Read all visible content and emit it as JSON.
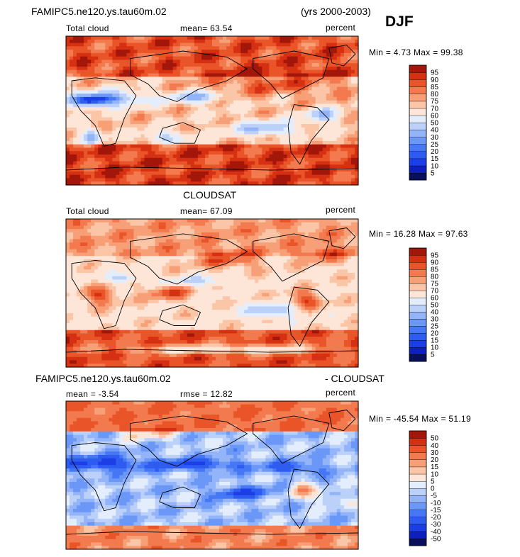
{
  "header": {
    "model": "FAMIPC5.ne120.ys.tau60m.02",
    "years": "(yrs 2000-2003)",
    "season": "DJF"
  },
  "panels": [
    {
      "title": "",
      "left_label": "Total cloud",
      "stat1": "mean=  63.54",
      "stat2": "",
      "units": "percent",
      "minmax": "Min =   4.73 Max =  99.38",
      "levels": [
        "5",
        "10",
        "15",
        "20",
        "25",
        "30",
        "40",
        "50",
        "60",
        "70",
        "75",
        "80",
        "85",
        "90",
        "95"
      ],
      "colors": [
        "#08105e",
        "#0d1fbf",
        "#1b3ee6",
        "#2e5cf0",
        "#4677f5",
        "#6b97f7",
        "#93b4f8",
        "#bcd1fa",
        "#e4edfb",
        "#fde6d8",
        "#fbc5a7",
        "#f7a078",
        "#f27a4e",
        "#e95429",
        "#d63012",
        "#a3160a"
      ],
      "pattern": "model"
    },
    {
      "title": "CLOUDSAT",
      "left_label": "Total cloud",
      "stat1": "mean=  67.09",
      "stat2": "",
      "units": "percent",
      "minmax": "Min =  16.28 Max =  97.63",
      "levels": [
        "5",
        "10",
        "15",
        "20",
        "25",
        "30",
        "40",
        "50",
        "60",
        "70",
        "75",
        "80",
        "85",
        "90",
        "95"
      ],
      "colors": [
        "#08105e",
        "#0d1fbf",
        "#1b3ee6",
        "#2e5cf0",
        "#4677f5",
        "#6b97f7",
        "#93b4f8",
        "#bcd1fa",
        "#e4edfb",
        "#fde6d8",
        "#fbc5a7",
        "#f7a078",
        "#f27a4e",
        "#e95429",
        "#d63012",
        "#a3160a"
      ],
      "pattern": "obs"
    },
    {
      "title": "FAMIPC5.ne120.ys.tau60m.02",
      "title_right": "- CLOUDSAT",
      "left_label": "mean =  -3.54",
      "stat1": "rmse =  12.82",
      "stat2": "",
      "units": "percent",
      "minmax": "Min = -45.54 Max =  51.19",
      "levels": [
        "-50",
        "-40",
        "-30",
        "-20",
        "-15",
        "-10",
        "-5",
        "0",
        "5",
        "10",
        "15",
        "20",
        "30",
        "40",
        "50"
      ],
      "colors": [
        "#08105e",
        "#0d1fbf",
        "#1b3ee6",
        "#2e5cf0",
        "#4677f5",
        "#6b97f7",
        "#93b4f8",
        "#bcd1fa",
        "#e4edfb",
        "#fde6d8",
        "#fbc5a7",
        "#f7a078",
        "#f27a4e",
        "#e95429",
        "#d63012",
        "#a3160a"
      ],
      "pattern": "diff"
    }
  ],
  "chart_data": {
    "type": "heatmap",
    "title": "DJF",
    "variable": "Total cloud",
    "units": "percent",
    "maps": [
      {
        "name": "FAMIPC5.ne120.ys.tau60m.02",
        "mean": 63.54,
        "min": 4.73,
        "max": 99.38
      },
      {
        "name": "CLOUDSAT",
        "mean": 67.09,
        "min": 16.28,
        "max": 97.63
      },
      {
        "name": "FAMIPC5.ne120.ys.tau60m.02 - CLOUDSAT",
        "mean": -3.54,
        "rmse": 12.82,
        "min": -45.54,
        "max": 51.19
      }
    ]
  }
}
